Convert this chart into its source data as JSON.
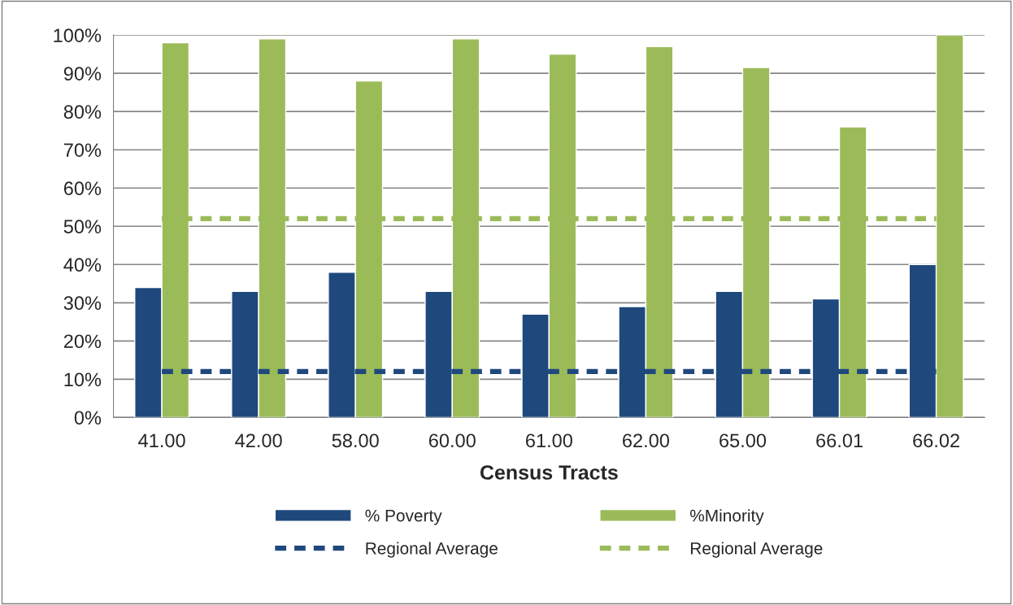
{
  "chart_data": {
    "type": "bar",
    "xlabel": "Census Tracts",
    "categories": [
      "41.00",
      "42.00",
      "58.00",
      "60.00",
      "61.00",
      "62.00",
      "65.00",
      "66.01",
      "66.02"
    ],
    "series": [
      {
        "name": "% Poverty",
        "color": "#1f497d",
        "values": [
          34,
          33,
          38,
          33,
          27,
          29,
          33,
          31,
          40
        ]
      },
      {
        "name": "%Minority",
        "color": "#9bbb59",
        "values": [
          98,
          99,
          88,
          99,
          95,
          97,
          91.5,
          76,
          100
        ]
      },
      {
        "name": "Regional Average",
        "type": "line",
        "line_style": "dashed",
        "color": "#1f497d",
        "values": [
          12,
          12,
          12,
          12,
          12,
          12,
          12,
          12,
          12
        ]
      },
      {
        "name": "Regional Average",
        "type": "line",
        "line_style": "dashed",
        "color": "#9bbb59",
        "values": [
          52,
          52,
          52,
          52,
          52,
          52,
          52,
          52,
          52
        ]
      }
    ],
    "ylim": [
      0,
      100
    ],
    "yticks": [
      {
        "value": 0,
        "label": "0%"
      },
      {
        "value": 10,
        "label": "10%"
      },
      {
        "value": 20,
        "label": "20%"
      },
      {
        "value": 30,
        "label": "30%"
      },
      {
        "value": 40,
        "label": "40%"
      },
      {
        "value": 50,
        "label": "50%"
      },
      {
        "value": 60,
        "label": "60%"
      },
      {
        "value": 70,
        "label": "70%"
      },
      {
        "value": 80,
        "label": "80%"
      },
      {
        "value": 90,
        "label": "90%"
      },
      {
        "value": 100,
        "label": "100%"
      }
    ],
    "grid": "y",
    "legend": "bottom"
  }
}
